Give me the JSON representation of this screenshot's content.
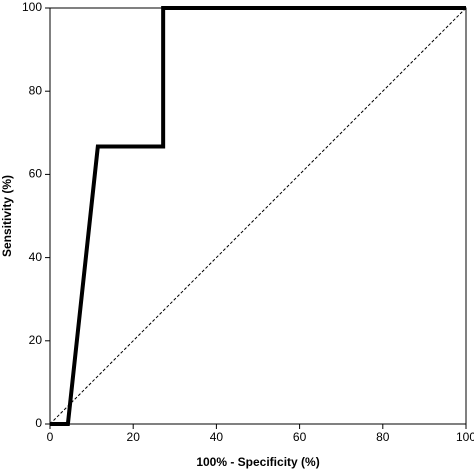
{
  "chart_data": {
    "type": "line",
    "x_label": "100% - Specificity (%)",
    "y_label": "Sensitivity (%)",
    "xlim": [
      0,
      100
    ],
    "ylim": [
      0,
      100
    ],
    "xticks": [
      0,
      20,
      40,
      60,
      80,
      100
    ],
    "yticks": [
      0,
      20,
      40,
      60,
      80,
      100
    ],
    "series": [
      {
        "color": "#000000",
        "style": "solid",
        "x": [
          0,
          4.3,
          11.5,
          27.2,
          27.2,
          100
        ],
        "values": [
          0,
          0,
          66.7,
          66.7,
          100,
          100
        ]
      },
      {
        "color": "#000000",
        "style": "dashed",
        "x": [
          0,
          100
        ],
        "values": [
          0,
          100
        ]
      }
    ]
  }
}
